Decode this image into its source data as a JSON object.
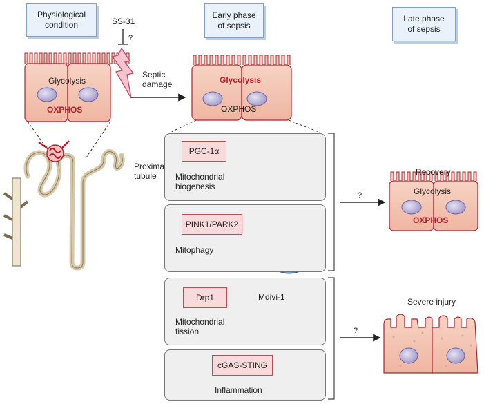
{
  "headers": {
    "physiological": "Physiological\ncondition",
    "early": "Early phase\nof sepsis",
    "late": "Late phase\nof sepsis"
  },
  "labels": {
    "ss31": "SS-31",
    "question": "?",
    "septic_damage": "Septic\ndamage",
    "proximal_tubule": "Proximal\ntubule",
    "recovery": "Recovery",
    "severe_injury": "Severe injury",
    "q_recovery": "?",
    "q_severe": "?",
    "mdivi": "Mdivi-1"
  },
  "cells": {
    "physio": {
      "glycolysis": "Glycolysis",
      "oxphos": "OXPHOS"
    },
    "early": {
      "glycolysis": "Glycolysis",
      "oxphos": "OXPHOS"
    },
    "recovery": {
      "glycolysis": "Glycolysis",
      "oxphos": "OXPHOS"
    }
  },
  "panels": [
    {
      "marker": "PGC-1α",
      "process": "Mitochondrial\nbiogenesis"
    },
    {
      "marker": "PINK1/PARK2",
      "process": "Mitophagy"
    },
    {
      "marker": "Drp1",
      "process": "Mitochondrial\nfission"
    },
    {
      "marker": "cGAS-STING",
      "process": "Inflammation"
    }
  ],
  "colors": {
    "cell_fill": "#f4c7b6",
    "cell_stroke": "#b3202d",
    "nucleus": "#b6b0d6",
    "panel": "#efefef",
    "header_fill": "#e9f1fa",
    "arrow_red": "#8b1a22"
  }
}
